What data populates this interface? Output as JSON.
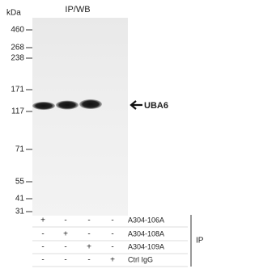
{
  "title": "IP/WB",
  "unit": "kDa",
  "markers": [
    "460",
    "268",
    "238",
    "171",
    "117",
    "71",
    "55",
    "41",
    "31"
  ],
  "band_label": "UBA6",
  "table": {
    "rows": [
      {
        "label": "A304-106A",
        "cells": [
          "+",
          "-",
          "-",
          "-"
        ]
      },
      {
        "label": "A304-108A",
        "cells": [
          "-",
          "+",
          "-",
          "-"
        ]
      },
      {
        "label": "A304-109A",
        "cells": [
          "-",
          "-",
          "+",
          "-"
        ]
      },
      {
        "label": "Ctrl IgG",
        "cells": [
          "-",
          "-",
          "-",
          "+"
        ]
      }
    ]
  },
  "group_label": "IP"
}
